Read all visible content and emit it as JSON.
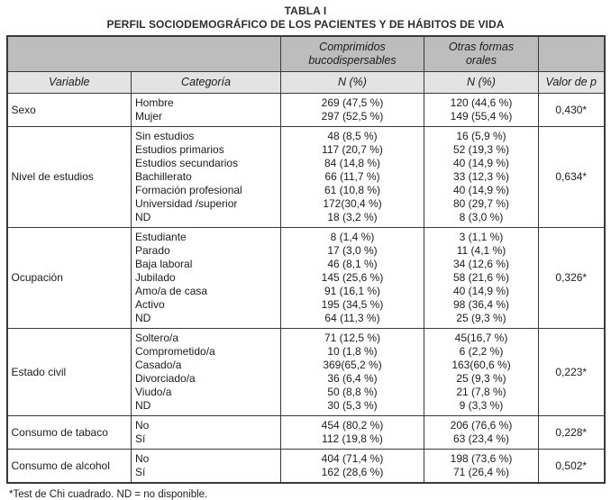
{
  "title": "TABLA I",
  "subtitle": "PERFIL SOCIODEMOGRÁFICO DE LOS PACIENTES Y DE HÁBITOS DE VIDA",
  "colors": {
    "header_dark": "#bdbdbd",
    "header_light": "#e3e3e3",
    "border": "#3a3a3a",
    "text": "#1c1c1c"
  },
  "table": {
    "headers": {
      "variable": "Variable",
      "category": "Categoría",
      "group1": "Comprimidos\nbucodispersables",
      "group2": "Otras formas\norales",
      "n_pct_1": "N (%)",
      "n_pct_2": "N (%)",
      "p": "Valor de p"
    },
    "groups": [
      {
        "variable": "Sexo",
        "p": "0,430*",
        "rows": [
          {
            "category": "Hombre",
            "comprimidos": "269 (47,5 %)",
            "otras": "120 (44,6 %)"
          },
          {
            "category": "Mujer",
            "comprimidos": "297 (52,5 %)",
            "otras": "149 (55,4 %)"
          }
        ]
      },
      {
        "variable": "Nivel de estudios",
        "p": "0,634*",
        "rows": [
          {
            "category": "Sin estudios",
            "comprimidos": "48 (8,5 %)",
            "otras": "16 (5,9 %)"
          },
          {
            "category": "Estudios primarios",
            "comprimidos": "117 (20,7 %)",
            "otras": "52 (19,3 %)"
          },
          {
            "category": "Estudios secundarios",
            "comprimidos": "84 (14,8 %)",
            "otras": "40 (14,9 %)"
          },
          {
            "category": "Bachillerato",
            "comprimidos": "66 (11,7 %)",
            "otras": "33 (12,3 %)"
          },
          {
            "category": "Formación profesional",
            "comprimidos": "61 (10,8 %)",
            "otras": "40 (14,9 %)"
          },
          {
            "category": "Universidad /superior",
            "comprimidos": "172(30,4 %)",
            "otras": "80 (29,7 %)"
          },
          {
            "category": "ND",
            "comprimidos": "18 (3,2 %)",
            "otras": "8 (3,0 %)"
          }
        ]
      },
      {
        "variable": "Ocupación",
        "p": "0,326*",
        "rows": [
          {
            "category": "Estudiante",
            "comprimidos": "8 (1,4 %)",
            "otras": "3 (1,1 %)"
          },
          {
            "category": "Parado",
            "comprimidos": "17 (3,0 %)",
            "otras": "11 (4,1 %)"
          },
          {
            "category": "Baja laboral",
            "comprimidos": "46 (8,1 %)",
            "otras": "34 (12,6 %)"
          },
          {
            "category": "Jubilado",
            "comprimidos": "145 (25,6 %)",
            "otras": "58 (21,6 %)"
          },
          {
            "category": "Amo/a de casa",
            "comprimidos": "91 (16,1 %)",
            "otras": "40 (14,9 %)"
          },
          {
            "category": "Activo",
            "comprimidos": "195 (34,5 %)",
            "otras": "98 (36,4 %)"
          },
          {
            "category": "ND",
            "comprimidos": "64 (11,3 %)",
            "otras": "25 (9,3 %)"
          }
        ]
      },
      {
        "variable": "Estado civil",
        "p": "0,223*",
        "rows": [
          {
            "category": "Soltero/a",
            "comprimidos": "71 (12,5 %)",
            "otras": "45(16,7 %)"
          },
          {
            "category": "Comprometido/a",
            "comprimidos": "10 (1,8 %)",
            "otras": "6 (2,2 %)"
          },
          {
            "category": "Casado/a",
            "comprimidos": "369(65,2 %)",
            "otras": "163(60,6 %)"
          },
          {
            "category": "Divorciado/a",
            "comprimidos": "36 (6,4 %)",
            "otras": "25 (9,3 %)"
          },
          {
            "category": "Viudo/a",
            "comprimidos": "50 (8,8 %)",
            "otras": "21 (7,8 %)"
          },
          {
            "category": "ND",
            "comprimidos": "30 (5,3 %)",
            "otras": "9 (3,3 %)"
          }
        ]
      },
      {
        "variable": "Consumo de tabaco",
        "p": "0,228*",
        "rows": [
          {
            "category": "No",
            "comprimidos": "454 (80,2 %)",
            "otras": "206 (76,6 %)"
          },
          {
            "category": "Sí",
            "comprimidos": "112 (19,8 %)",
            "otras": "63 (23,4 %)"
          }
        ]
      },
      {
        "variable": "Consumo de alcohol",
        "p": "0,502*",
        "rows": [
          {
            "category": "No",
            "comprimidos": "404 (71,4 %)",
            "otras": "198 (73,6 %)"
          },
          {
            "category": "Sí",
            "comprimidos": "162 (28,6 %)",
            "otras": "71 (26,4 %)"
          }
        ]
      }
    ]
  },
  "footnote": "*Test de Chi cuadrado. ND = no disponible."
}
